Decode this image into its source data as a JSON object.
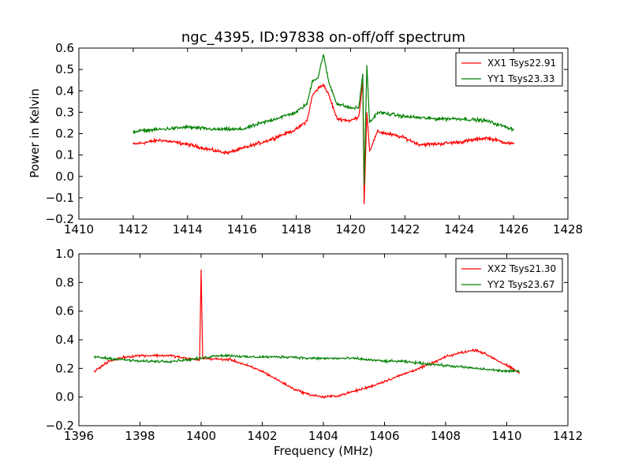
{
  "chart_data": [
    {
      "type": "line",
      "title": "ngc_4395, ID:97838 on-off/off spectrum",
      "xlabel": "",
      "ylabel": "Power in Kelvin",
      "xlim": [
        1410,
        1428
      ],
      "ylim": [
        -0.2,
        0.6
      ],
      "xticks": [
        1410,
        1412,
        1414,
        1416,
        1418,
        1420,
        1422,
        1424,
        1426,
        1428
      ],
      "yticks": [
        -0.2,
        -0.1,
        0.0,
        0.1,
        0.2,
        0.3,
        0.4,
        0.5,
        0.6
      ],
      "xtick_labels": [
        "1410",
        "1412",
        "1414",
        "1416",
        "1418",
        "1420",
        "1422",
        "1424",
        "1426",
        "1428"
      ],
      "ytick_labels": [
        "−0.2",
        "−0.1",
        "0.0",
        "0.1",
        "0.2",
        "0.3",
        "0.4",
        "0.5",
        "0.6"
      ],
      "legend_position": "top-right",
      "grid": false,
      "series": [
        {
          "name": "XX1 Tsys22.91",
          "color": "#ff0000",
          "x": [
            1412.0,
            1413.0,
            1414.0,
            1415.0,
            1415.5,
            1416.0,
            1417.0,
            1418.0,
            1418.4,
            1418.6,
            1418.8,
            1419.0,
            1419.2,
            1419.5,
            1420.0,
            1420.3,
            1420.45,
            1420.5,
            1420.6,
            1420.7,
            1421.0,
            1422.0,
            1422.5,
            1423.0,
            1424.0,
            1425.0,
            1426.0
          ],
          "y": [
            0.15,
            0.17,
            0.15,
            0.12,
            0.11,
            0.13,
            0.17,
            0.22,
            0.26,
            0.38,
            0.41,
            0.43,
            0.38,
            0.27,
            0.26,
            0.28,
            0.44,
            -0.13,
            0.3,
            0.12,
            0.21,
            0.18,
            0.15,
            0.15,
            0.16,
            0.18,
            0.15
          ]
        },
        {
          "name": "YY1 Tsys23.33",
          "color": "#008000",
          "x": [
            1412.0,
            1413.0,
            1414.0,
            1415.0,
            1416.0,
            1417.0,
            1418.0,
            1418.4,
            1418.6,
            1418.8,
            1419.0,
            1419.2,
            1419.5,
            1420.0,
            1420.3,
            1420.45,
            1420.5,
            1420.6,
            1420.7,
            1421.0,
            1422.0,
            1423.0,
            1424.0,
            1425.0,
            1426.0
          ],
          "y": [
            0.21,
            0.22,
            0.23,
            0.22,
            0.22,
            0.26,
            0.3,
            0.34,
            0.45,
            0.46,
            0.57,
            0.44,
            0.34,
            0.32,
            0.32,
            0.48,
            -0.04,
            0.52,
            0.25,
            0.3,
            0.28,
            0.27,
            0.27,
            0.26,
            0.22
          ]
        }
      ]
    },
    {
      "type": "line",
      "title": "",
      "xlabel": "Frequency (MHz)",
      "ylabel": "",
      "xlim": [
        1396,
        1412
      ],
      "ylim": [
        -0.2,
        1.0
      ],
      "xticks": [
        1396,
        1398,
        1400,
        1402,
        1404,
        1406,
        1408,
        1410,
        1412
      ],
      "yticks": [
        -0.2,
        0.0,
        0.2,
        0.4,
        0.6,
        0.8,
        1.0
      ],
      "xtick_labels": [
        "1396",
        "1398",
        "1400",
        "1402",
        "1404",
        "1406",
        "1408",
        "1410",
        "1412"
      ],
      "ytick_labels": [
        "−0.2",
        "0.0",
        "0.2",
        "0.4",
        "0.6",
        "0.8",
        "1.0"
      ],
      "legend_position": "top-right",
      "grid": false,
      "series": [
        {
          "name": "XX2 Tsys21.30",
          "color": "#ff0000",
          "x": [
            1396.5,
            1397.0,
            1397.5,
            1398.0,
            1398.5,
            1399.0,
            1399.5,
            1399.95,
            1400.0,
            1400.05,
            1401.0,
            1401.5,
            1402.0,
            1402.5,
            1403.0,
            1403.5,
            1404.0,
            1404.5,
            1405.0,
            1405.5,
            1406.0,
            1406.5,
            1407.0,
            1407.5,
            1408.0,
            1408.5,
            1409.0,
            1409.5,
            1410.0,
            1410.4
          ],
          "y": [
            0.18,
            0.25,
            0.28,
            0.29,
            0.29,
            0.29,
            0.27,
            0.26,
            0.89,
            0.27,
            0.26,
            0.22,
            0.18,
            0.12,
            0.06,
            0.02,
            0.0,
            0.01,
            0.04,
            0.07,
            0.11,
            0.15,
            0.19,
            0.23,
            0.28,
            0.31,
            0.33,
            0.28,
            0.22,
            0.17
          ]
        },
        {
          "name": "YY2 Tsys23.67",
          "color": "#008000",
          "x": [
            1396.5,
            1397.0,
            1397.5,
            1398.0,
            1398.5,
            1399.0,
            1399.5,
            1400.0,
            1400.5,
            1401.0,
            1401.5,
            1402.0,
            1402.5,
            1403.0,
            1403.5,
            1404.0,
            1404.5,
            1405.0,
            1405.5,
            1406.0,
            1406.5,
            1407.0,
            1407.5,
            1408.0,
            1408.5,
            1409.0,
            1409.5,
            1410.0,
            1410.4
          ],
          "y": [
            0.28,
            0.27,
            0.26,
            0.25,
            0.25,
            0.25,
            0.26,
            0.27,
            0.29,
            0.29,
            0.28,
            0.28,
            0.28,
            0.28,
            0.27,
            0.27,
            0.27,
            0.27,
            0.26,
            0.25,
            0.25,
            0.24,
            0.23,
            0.22,
            0.21,
            0.2,
            0.19,
            0.18,
            0.18
          ]
        }
      ]
    }
  ]
}
